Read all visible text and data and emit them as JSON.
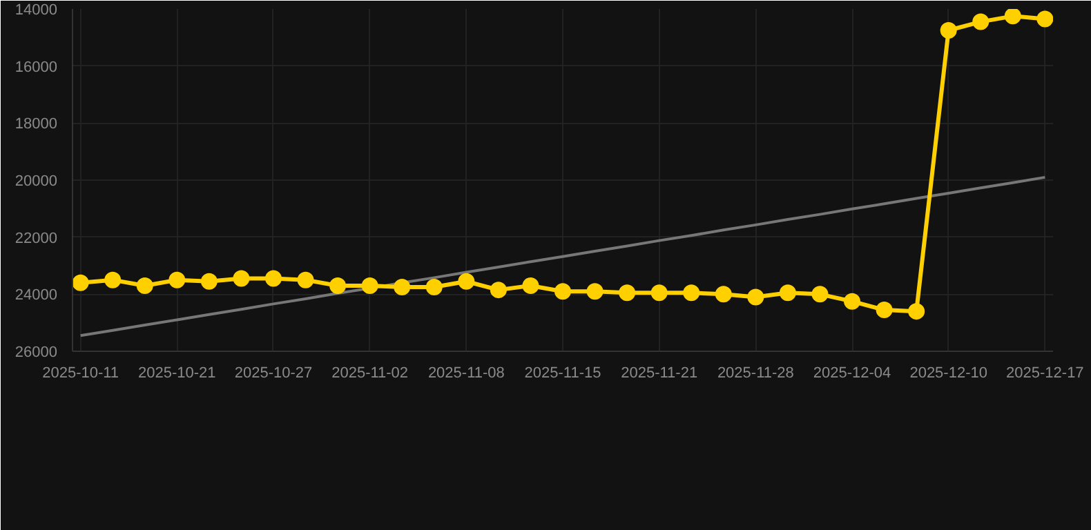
{
  "chart_data": {
    "type": "line",
    "categories": [
      "2025-10-11",
      null,
      null,
      "2025-10-21",
      null,
      null,
      "2025-10-27",
      null,
      null,
      "2025-11-02",
      null,
      null,
      "2025-11-08",
      null,
      null,
      "2025-11-15",
      null,
      null,
      "2025-11-21",
      null,
      null,
      "2025-11-28",
      null,
      null,
      "2025-12-04",
      null,
      null,
      "2025-12-10",
      null,
      null,
      "2025-12-17"
    ],
    "series": [
      {
        "color": "#ffd000",
        "marker": "circle",
        "values": [
          23600,
          23500,
          23700,
          23500,
          23550,
          23450,
          23450,
          23500,
          23700,
          23700,
          23750,
          23750,
          23550,
          23850,
          23700,
          23900,
          23900,
          23950,
          23950,
          23950,
          24000,
          24100,
          23950,
          24000,
          24250,
          24550,
          24600,
          14750,
          14450,
          14250,
          14350
        ]
      },
      {
        "color": "#777777",
        "marker": "none",
        "values": [
          25450,
          25270,
          25080,
          24900,
          24710,
          24530,
          24340,
          24160,
          23970,
          23790,
          23600,
          23420,
          23230,
          23050,
          22860,
          22680,
          22490,
          22310,
          22120,
          21940,
          21750,
          21570,
          21380,
          21200,
          21010,
          20830,
          20640,
          20460,
          20270,
          20090,
          19900
        ]
      }
    ],
    "ylim": [
      26000,
      14000
    ],
    "yticks": [
      14000,
      16000,
      18000,
      20000,
      22000,
      24000,
      26000
    ],
    "grid": true
  }
}
